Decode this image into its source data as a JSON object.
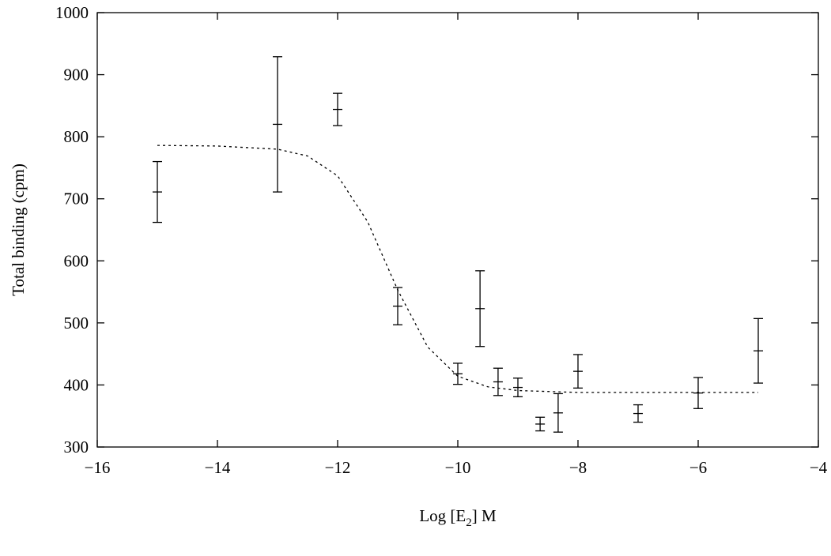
{
  "chart_data": {
    "type": "errorbar",
    "x_label_parts": [
      "Log [E",
      "2",
      "] M"
    ],
    "y_label": "Total binding (cpm)",
    "x": [
      -15,
      -13,
      -12,
      -11,
      -10,
      -9.63,
      -9.33,
      -9,
      -8.63,
      -8.33,
      -8,
      -7,
      -6,
      -5
    ],
    "values": [
      711,
      820,
      844,
      527,
      418,
      523,
      405,
      396,
      337,
      355,
      422,
      354,
      387,
      455
    ],
    "errors": [
      49,
      109,
      26,
      30,
      17,
      61,
      22,
      15,
      11,
      31,
      27,
      14,
      25,
      52
    ],
    "fit_x": [
      -15,
      -14,
      -13,
      -12.5,
      -12,
      -11.5,
      -11,
      -10.5,
      -10,
      -9.5,
      -9,
      -8,
      -7,
      -6,
      -5
    ],
    "fit_values": [
      786,
      785,
      780,
      769,
      737,
      663,
      553,
      461,
      414,
      397,
      391,
      388,
      388,
      388,
      388
    ],
    "color": "#000000",
    "xlim": [
      -16,
      -4
    ],
    "ylim": [
      300,
      1000
    ],
    "xticks": [
      {
        "value": -16,
        "label": "−16"
      },
      {
        "value": -14,
        "label": "−14"
      },
      {
        "value": -12,
        "label": "−12"
      },
      {
        "value": -10,
        "label": "−10"
      },
      {
        "value": -8,
        "label": "−8"
      },
      {
        "value": -6,
        "label": "−6"
      },
      {
        "value": -4,
        "label": "−4"
      }
    ],
    "yticks": [
      300,
      400,
      500,
      600,
      700,
      800,
      900,
      1000
    ]
  }
}
